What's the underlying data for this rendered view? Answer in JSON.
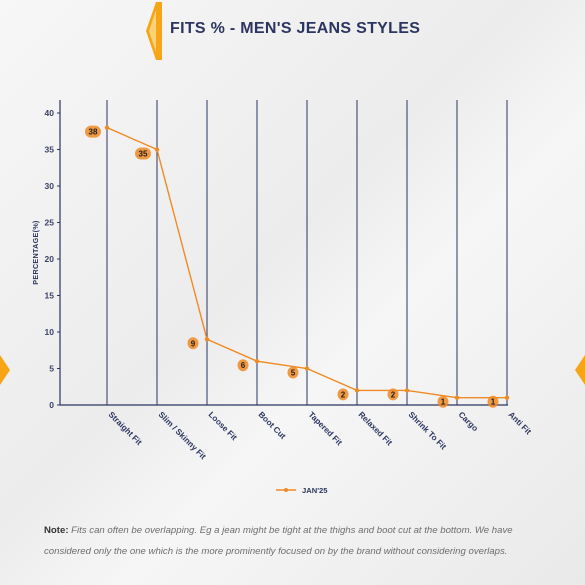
{
  "header": {
    "title": "FITS % - MEN'S JEANS STYLES"
  },
  "colors": {
    "accent": "#f5a515",
    "line": "#f08a24",
    "grid": "#2b3560",
    "title": "#2b3560"
  },
  "chart_data": {
    "type": "line",
    "title": "FITS % - MEN'S JEANS STYLES",
    "xlabel": "",
    "ylabel": "PERCENTAGE(%)",
    "ylim": [
      0,
      40
    ],
    "yticks": [
      0,
      5,
      10,
      15,
      20,
      25,
      30,
      35,
      40
    ],
    "categories": [
      "Straight Fit",
      "Slim / Skinny Fit",
      "Loose Fit",
      "Boot Cut",
      "Tapered Fit",
      "Relaxed Fit",
      "Shrink To Fit",
      "Cargo",
      "Anti Fit"
    ],
    "series": [
      {
        "name": "JAN'25",
        "values": [
          38,
          35,
          9,
          6,
          5,
          2,
          2,
          1,
          1
        ],
        "labels": [
          "38",
          "35",
          "9",
          "6",
          "5",
          "2",
          "2",
          "1",
          "1"
        ]
      }
    ],
    "grid": "vertical",
    "legend": "bottom-center"
  },
  "note": {
    "label": "Note:",
    "text": " Fits can often be overlapping. Eg a jean might be tight at the thighs and boot cut at the bottom. We have considered only the one which is the more prominently focused on by the brand without considering overlaps."
  }
}
